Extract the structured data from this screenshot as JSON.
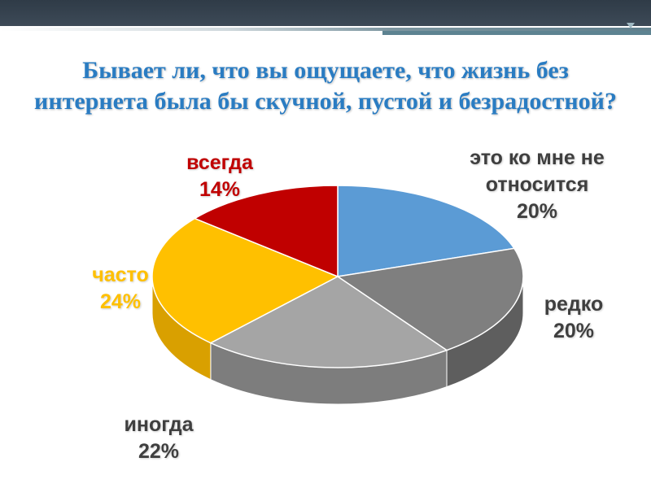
{
  "title": {
    "line1": "Бывает ли, что вы ощущаете, что жизнь без",
    "line2": "интернета была бы скучной, пустой и безрадостной?"
  },
  "colors": {
    "topbar": "#334150",
    "accent": "#5d8391",
    "title": "#2a7cc2"
  },
  "chart_data": {
    "type": "pie",
    "title": "Бывает ли, что вы ощущаете, что жизнь без интернета была бы скучной, пустой и безрадостной?",
    "style": "3d",
    "slices": [
      {
        "label": "это ко мне не относится",
        "label_lines": [
          "это ко мне не",
          "относится"
        ],
        "value": 20,
        "value_text": "20%",
        "color": "#5b9bd5",
        "side_color": "#4a7fae",
        "label_color": "#3f3f3f"
      },
      {
        "label": "редко",
        "label_lines": [
          "редко"
        ],
        "value": 20,
        "value_text": "20%",
        "color": "#7f7f7f",
        "side_color": "#5e5e5e",
        "label_color": "#3f3f3f"
      },
      {
        "label": "иногда",
        "label_lines": [
          "иногда"
        ],
        "value": 22,
        "value_text": "22%",
        "color": "#a5a5a5",
        "side_color": "#7d7d7d",
        "label_color": "#3f3f3f"
      },
      {
        "label": "часто",
        "label_lines": [
          "часто"
        ],
        "value": 24,
        "value_text": "24%",
        "color": "#ffc000",
        "side_color": "#d9a000",
        "label_color": "#ffc000"
      },
      {
        "label": "всегда",
        "label_lines": [
          "всегда"
        ],
        "value": 14,
        "value_text": "14%",
        "color": "#c00000",
        "side_color": "#8f0000",
        "label_color": "#c00000"
      }
    ]
  }
}
